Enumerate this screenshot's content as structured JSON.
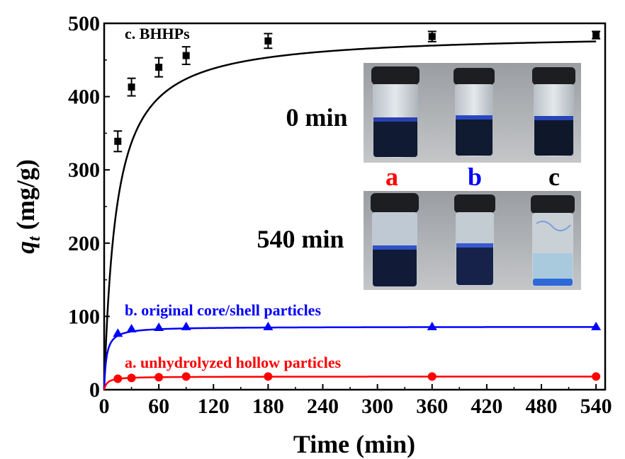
{
  "chart_data": {
    "type": "line",
    "title": "",
    "xlabel": "Time (min)",
    "ylabel": {
      "main": "q",
      "subscript": "t",
      "unit": " (mg/g)"
    },
    "xlim": [
      0,
      550
    ],
    "ylim": [
      0,
      500
    ],
    "x_ticks": [
      0,
      60,
      120,
      180,
      240,
      300,
      360,
      420,
      480,
      540
    ],
    "y_ticks": [
      0,
      100,
      200,
      300,
      400,
      500
    ],
    "grid": false,
    "series": [
      {
        "name": "c. BHHPs",
        "color": "#000000",
        "marker": "square",
        "x": [
          15,
          30,
          60,
          90,
          180,
          360,
          540
        ],
        "y": [
          339,
          413,
          440,
          456,
          476,
          482,
          484
        ],
        "error": [
          14,
          12,
          13,
          12,
          10,
          7,
          5
        ],
        "fit": {
          "qe": 487,
          "k": 0.075
        }
      },
      {
        "name": "b. original core/shell particles",
        "color": "#0000ff",
        "marker": "triangle",
        "x": [
          15,
          30,
          60,
          90,
          180,
          360,
          540
        ],
        "y": [
          77,
          83,
          85,
          86,
          86,
          86,
          86
        ],
        "fit": {
          "qe": 86,
          "k": 0.4
        }
      },
      {
        "name": "a. unhydrolyzed hollow particles",
        "color": "#ff0000",
        "marker": "circle",
        "x": [
          15,
          30,
          60,
          90,
          180,
          360,
          540
        ],
        "y": [
          15,
          16,
          17,
          18,
          18,
          18,
          18
        ],
        "fit": {
          "qe": 18,
          "k": 0.3
        }
      }
    ],
    "inset": {
      "rows": [
        {
          "label": "0 min"
        },
        {
          "label": "540 min"
        }
      ],
      "vial_labels": [
        {
          "text": "a",
          "color": "#ff0000"
        },
        {
          "text": "b",
          "color": "#0000ff"
        },
        {
          "text": "c",
          "color": "#000000"
        }
      ]
    }
  }
}
